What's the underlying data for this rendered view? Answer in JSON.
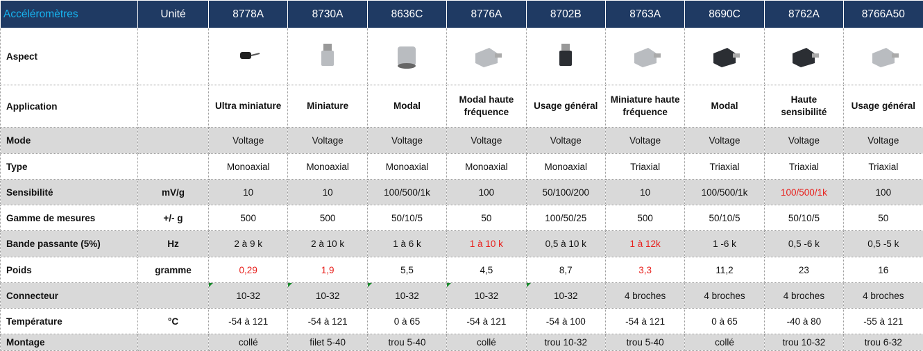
{
  "table": {
    "header": [
      "Accéléromètres",
      "Unité",
      "8778A",
      "8730A",
      "8636C",
      "8776A",
      "8702B",
      "8763A",
      "8690C",
      "8762A",
      "8766A50"
    ],
    "rows": [
      {
        "label": "Aspect"
      },
      {
        "label": "Application",
        "values": [
          "Ultra miniature",
          "Miniature",
          "Modal",
          "Modal haute fréquence",
          "Usage général",
          "Miniature haute fréquence",
          "Modal",
          "Haute sensibilité",
          "Usage général"
        ]
      },
      {
        "label": "Mode",
        "values": [
          "Voltage",
          "Voltage",
          "Voltage",
          "Voltage",
          "Voltage",
          "Voltage",
          "Voltage",
          "Voltage",
          "Voltage"
        ]
      },
      {
        "label": "Type",
        "values": [
          "Monoaxial",
          "Monoaxial",
          "Monoaxial",
          "Monoaxial",
          "Monoaxial",
          "Triaxial",
          "Triaxial",
          "Triaxial",
          "Triaxial"
        ]
      },
      {
        "label": "Sensibilité",
        "unit": "mV/g",
        "values": [
          "10",
          "10",
          "100/500/1k",
          "100",
          "50/100/200",
          "10",
          "100/500/1k",
          "100/500/1k",
          "100"
        ]
      },
      {
        "label": "Gamme de mesures",
        "unit": "+/- g",
        "values": [
          "500",
          "500",
          "50/10/5",
          "50",
          "100/50/25",
          "500",
          "50/10/5",
          "50/10/5",
          "50"
        ]
      },
      {
        "label": "Bande passante (5%)",
        "unit": "Hz",
        "values": [
          "2 à 9 k",
          "2 à 10 k",
          "1 à 6 k",
          "1 à 10 k",
          "0,5 à 10 k",
          "1 à 12k",
          "1 -6 k",
          "0,5 -6 k",
          "0,5 -5 k"
        ]
      },
      {
        "label": "Poids",
        "unit": "gramme",
        "values": [
          "0,29",
          "1,9",
          "5,5",
          "4,5",
          "8,7",
          "3,3",
          "11,2",
          "23",
          "16"
        ]
      },
      {
        "label": "Connecteur",
        "values": [
          "10-32",
          "10-32",
          "10-32",
          "10-32",
          "10-32",
          "4 broches",
          "4 broches",
          "4 broches",
          "4 broches"
        ]
      },
      {
        "label": "Température",
        "unit": "°C",
        "values": [
          "-54 à 121",
          "-54 à 121",
          "0 à 65",
          "-54 à 121",
          "-54 à 100",
          "-54 à 121",
          "0 à 65",
          "-40 à 80",
          "-55 à 121"
        ]
      },
      {
        "label": "Montage",
        "values": [
          "collé",
          "filet 5-40",
          "trou 5-40",
          "collé",
          "trou 10-32",
          "trou 5-40",
          "collé",
          "trou 10-32",
          "trou 6-32"
        ]
      }
    ]
  }
}
